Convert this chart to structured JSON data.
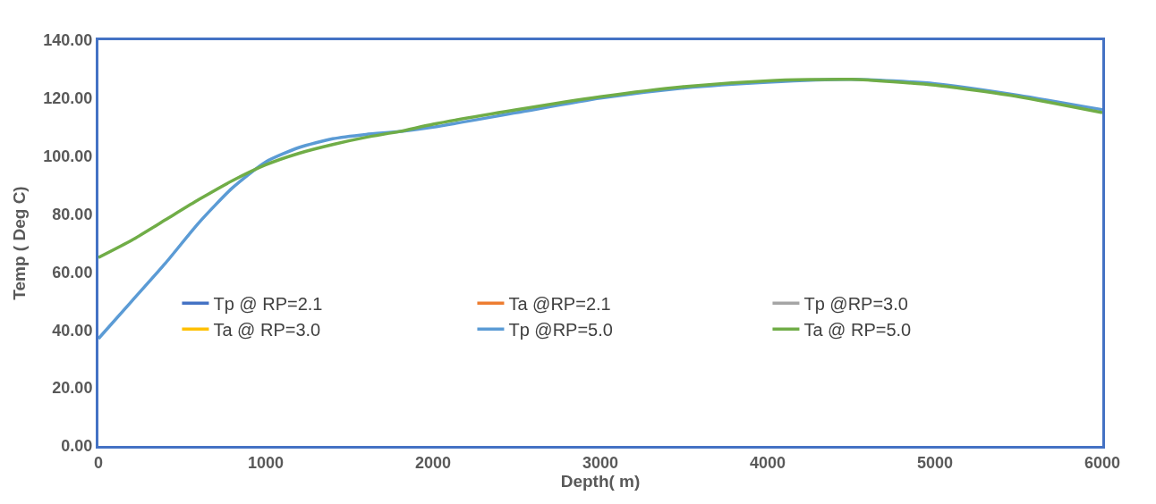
{
  "chart_data": {
    "type": "line",
    "xlabel": "Depth( m)",
    "ylabel": "Temp ( Deg C)",
    "x": [
      0,
      200,
      400,
      600,
      800,
      1000,
      1200,
      1400,
      1600,
      1800,
      2000,
      2500,
      3000,
      3500,
      4000,
      4500,
      5000,
      5500,
      6000
    ],
    "series": [
      {
        "name": "Tp @ RP=2.1",
        "color": "#4472c4",
        "values": [
          null,
          null,
          null,
          null,
          null,
          null,
          null,
          null,
          null,
          null,
          null,
          null,
          null,
          null,
          null,
          null,
          null,
          null,
          null
        ]
      },
      {
        "name": "Ta @RP=2.1",
        "color": "#ed7d31",
        "values": [
          null,
          null,
          null,
          null,
          null,
          null,
          null,
          null,
          null,
          null,
          null,
          null,
          null,
          null,
          null,
          null,
          null,
          null,
          null
        ]
      },
      {
        "name": "Tp @RP=3.0",
        "color": "#a5a5a5",
        "values": [
          null,
          null,
          null,
          null,
          null,
          null,
          null,
          null,
          null,
          null,
          null,
          null,
          null,
          null,
          null,
          null,
          null,
          null,
          null
        ]
      },
      {
        "name": "Ta @ RP=3.0",
        "color": "#ffc000",
        "values": [
          null,
          null,
          null,
          null,
          null,
          null,
          null,
          null,
          null,
          null,
          null,
          null,
          null,
          null,
          null,
          null,
          null,
          null,
          null
        ]
      },
      {
        "name": "Tp @RP=5.0",
        "color": "#5b9bd5",
        "values": [
          37,
          50,
          63,
          77,
          89,
          98,
          103,
          106,
          107.5,
          108.5,
          110,
          115,
          120,
          123.5,
          125.5,
          126.5,
          125,
          121,
          116
        ]
      },
      {
        "name": "Ta @ RP=5.0",
        "color": "#70ad47",
        "values": [
          65,
          71,
          78,
          85,
          91.5,
          97,
          101,
          104,
          106.5,
          108.5,
          111,
          116,
          120.5,
          124,
          126,
          126.5,
          124.5,
          120.5,
          115
        ]
      }
    ],
    "xlim": [
      0,
      6000
    ],
    "xticks": [
      0,
      1000,
      2000,
      3000,
      4000,
      5000,
      6000
    ],
    "ylim": [
      0,
      140
    ],
    "yticks": [
      {
        "value": 0,
        "label": "0.00"
      },
      {
        "value": 20,
        "label": "20.00"
      },
      {
        "value": 40,
        "label": "40.00"
      },
      {
        "value": 60,
        "label": "60.00"
      },
      {
        "value": 80,
        "label": "80.00"
      },
      {
        "value": 100,
        "label": "100.00"
      },
      {
        "value": 120,
        "label": "120.00"
      },
      {
        "value": 140,
        "label": "140.00"
      }
    ],
    "legend": "center",
    "marker": "none",
    "line_style": "solid"
  }
}
